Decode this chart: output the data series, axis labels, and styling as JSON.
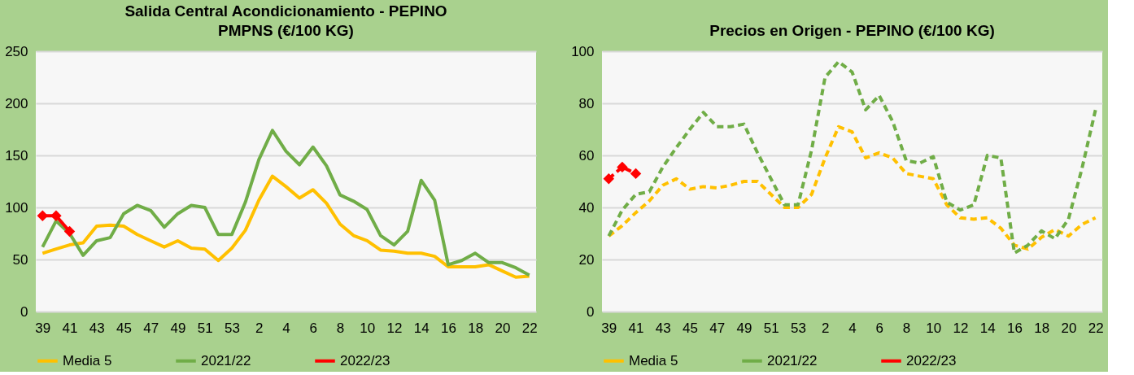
{
  "chart_data": [
    {
      "type": "line",
      "title": "Salida Central Acondicionamiento - PEPINO\nPMPNS (€/100 KG)",
      "categories": [
        "39",
        null,
        "41",
        null,
        "43",
        null,
        "45",
        null,
        "47",
        null,
        "49",
        null,
        "51",
        null,
        "53",
        null,
        "2",
        null,
        "4",
        null,
        "6",
        null,
        "8",
        null,
        "10",
        null,
        "12",
        null,
        "14",
        null,
        "16",
        null,
        "18",
        null,
        "20",
        null,
        "22"
      ],
      "series": [
        {
          "name": "Media 5",
          "color": "#ffc000",
          "line_style": "solid",
          "values": [
            56,
            60,
            64,
            66,
            82,
            83,
            82,
            74,
            68,
            62,
            68,
            61,
            60,
            49,
            61,
            78,
            107,
            130,
            120,
            109,
            117,
            104,
            84,
            73,
            68,
            59,
            58,
            56,
            56,
            53,
            43,
            43,
            43,
            45,
            39,
            33,
            34
          ]
        },
        {
          "name": "2021/22",
          "color": "#70ad47",
          "line_style": "solid",
          "values": [
            62,
            87,
            75,
            54,
            68,
            71,
            94,
            102,
            97,
            81,
            94,
            102,
            100,
            74,
            74,
            105,
            146,
            174,
            154,
            141,
            158,
            140,
            112,
            106,
            98,
            73,
            64,
            77,
            126,
            107,
            45,
            49,
            56,
            47,
            47,
            42,
            35
          ]
        },
        {
          "name": "2022/23",
          "color": "#ff0000",
          "line_style": "solid",
          "marker": "diamond",
          "values": [
            92,
            92,
            77,
            null,
            null,
            null,
            null,
            null,
            null,
            null,
            null,
            null,
            null,
            null,
            null,
            null,
            null,
            null,
            null,
            null,
            null,
            null,
            null,
            null,
            null,
            null,
            null,
            null,
            null,
            null,
            null,
            null,
            null,
            null,
            null,
            null,
            null
          ]
        }
      ],
      "ylim": [
        0,
        250
      ],
      "yticks": [
        0,
        50,
        100,
        150,
        200,
        250
      ],
      "grid": "y",
      "legend": "bottom"
    },
    {
      "type": "line",
      "title": "Precios en Origen - PEPINO (€/100 KG)",
      "categories": [
        "39",
        null,
        "41",
        null,
        "43",
        null,
        "45",
        null,
        "47",
        null,
        "49",
        null,
        "51",
        null,
        "53",
        null,
        "2",
        null,
        "4",
        null,
        "6",
        null,
        "8",
        null,
        "10",
        null,
        "12",
        null,
        "14",
        null,
        "16",
        null,
        "18",
        null,
        "20",
        null,
        "22"
      ],
      "series": [
        {
          "name": "Media 5",
          "color": "#ffc000",
          "line_style": "dashed",
          "values": [
            29,
            33,
            38,
            42.5,
            48.5,
            51,
            47,
            48,
            47.5,
            48.5,
            50,
            50,
            45,
            40,
            40,
            45,
            59,
            71,
            69,
            59,
            61,
            59,
            53,
            52,
            51,
            41,
            36,
            35.5,
            36,
            32,
            25.5,
            24,
            28.5,
            31.5,
            29,
            33.5,
            36
          ]
        },
        {
          "name": "2021/22",
          "color": "#70ad47",
          "line_style": "dashed",
          "values": [
            29,
            39,
            45,
            46,
            55.5,
            63,
            70,
            76.5,
            71,
            71,
            72,
            61,
            51,
            41,
            41,
            62,
            90,
            96,
            92,
            77.5,
            83,
            73,
            58,
            57,
            59.5,
            42,
            39,
            41,
            60,
            59,
            22.5,
            25.5,
            31,
            28,
            35.5,
            55,
            77.5
          ]
        },
        {
          "name": "2022/23",
          "color": "#ff0000",
          "line_style": "dashed",
          "marker": "diamond",
          "values": [
            51,
            55.5,
            53,
            null,
            null,
            null,
            null,
            null,
            null,
            null,
            null,
            null,
            null,
            null,
            null,
            null,
            null,
            null,
            null,
            null,
            null,
            null,
            null,
            null,
            null,
            null,
            null,
            null,
            null,
            null,
            null,
            null,
            null,
            null,
            null,
            null,
            null
          ]
        }
      ],
      "ylim": [
        0,
        100
      ],
      "yticks": [
        0,
        20,
        40,
        60,
        80,
        100
      ],
      "grid": "y",
      "legend": "bottom"
    }
  ]
}
